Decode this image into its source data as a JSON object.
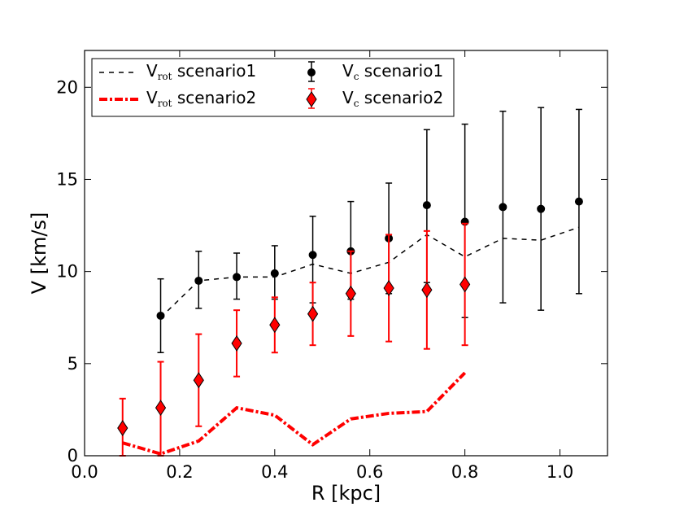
{
  "chart_data": {
    "type": "line",
    "title": "",
    "xlabel": "R [kpc]",
    "ylabel": "V [km/s]",
    "xlim": [
      0.0,
      1.1
    ],
    "ylim": [
      0,
      22
    ],
    "xticks": [
      0.0,
      0.2,
      0.4,
      0.6,
      0.8,
      1.0
    ],
    "xtick_labels": [
      "0.0",
      "0.2",
      "0.4",
      "0.6",
      "0.8",
      "1.0"
    ],
    "yticks": [
      0,
      5,
      10,
      15,
      20
    ],
    "ytick_labels": [
      "0",
      "5",
      "10",
      "15",
      "20"
    ],
    "grid": false,
    "legend_placement": "top-left",
    "series": [
      {
        "name": "Vrot scenario1",
        "label_main": "V",
        "label_sub": "rot",
        "label_rest": " scenario1",
        "kind": "line",
        "style": "dashed",
        "color": "#000000",
        "x": [
          0.16,
          0.24,
          0.32,
          0.4,
          0.48,
          0.56,
          0.64,
          0.72,
          0.8,
          0.88,
          0.96,
          1.04
        ],
        "y": [
          7.5,
          9.5,
          9.7,
          9.7,
          10.4,
          9.9,
          10.5,
          12.0,
          10.8,
          11.8,
          11.7,
          12.4
        ]
      },
      {
        "name": "Vrot scenario2",
        "label_main": "V",
        "label_sub": "rot",
        "label_rest": " scenario2",
        "kind": "line",
        "style": "dashdot",
        "color": "#ff0000",
        "x": [
          0.08,
          0.16,
          0.24,
          0.32,
          0.4,
          0.48,
          0.56,
          0.64,
          0.72,
          0.8
        ],
        "y": [
          0.7,
          0.1,
          0.8,
          2.6,
          2.2,
          0.6,
          2.0,
          2.3,
          2.4,
          4.5
        ]
      },
      {
        "name": "Vc scenario1",
        "label_main": "V",
        "label_sub": "c",
        "label_rest": " scenario1",
        "kind": "errorbar",
        "marker": "circle",
        "color": "#000000",
        "x": [
          0.16,
          0.24,
          0.32,
          0.4,
          0.48,
          0.56,
          0.64,
          0.72,
          0.8,
          0.88,
          0.96,
          1.04
        ],
        "y": [
          7.6,
          9.5,
          9.7,
          9.9,
          10.9,
          11.1,
          11.8,
          13.6,
          12.7,
          13.5,
          13.4,
          13.8
        ],
        "yerr_low": [
          2.0,
          1.5,
          1.2,
          1.4,
          2.6,
          2.6,
          3.0,
          4.2,
          5.2,
          5.2,
          5.5,
          5.0
        ],
        "yerr_high": [
          2.0,
          1.6,
          1.3,
          1.5,
          2.1,
          2.7,
          3.0,
          4.1,
          5.3,
          5.2,
          5.5,
          5.0
        ]
      },
      {
        "name": "Vc scenario2",
        "label_main": "V",
        "label_sub": "c",
        "label_rest": " scenario2",
        "kind": "errorbar",
        "marker": "diamond",
        "color": "#ff0000",
        "x": [
          0.08,
          0.16,
          0.24,
          0.32,
          0.4,
          0.48,
          0.56,
          0.64,
          0.72,
          0.8
        ],
        "y": [
          1.5,
          2.6,
          4.1,
          6.1,
          7.1,
          7.7,
          8.8,
          9.1,
          9.0,
          9.3
        ],
        "yerr_low": [
          1.5,
          2.6,
          2.5,
          1.8,
          1.5,
          1.7,
          2.3,
          2.9,
          3.2,
          3.3
        ],
        "yerr_high": [
          1.6,
          2.5,
          2.5,
          1.8,
          1.5,
          1.7,
          2.3,
          2.9,
          3.2,
          3.3
        ]
      }
    ]
  }
}
